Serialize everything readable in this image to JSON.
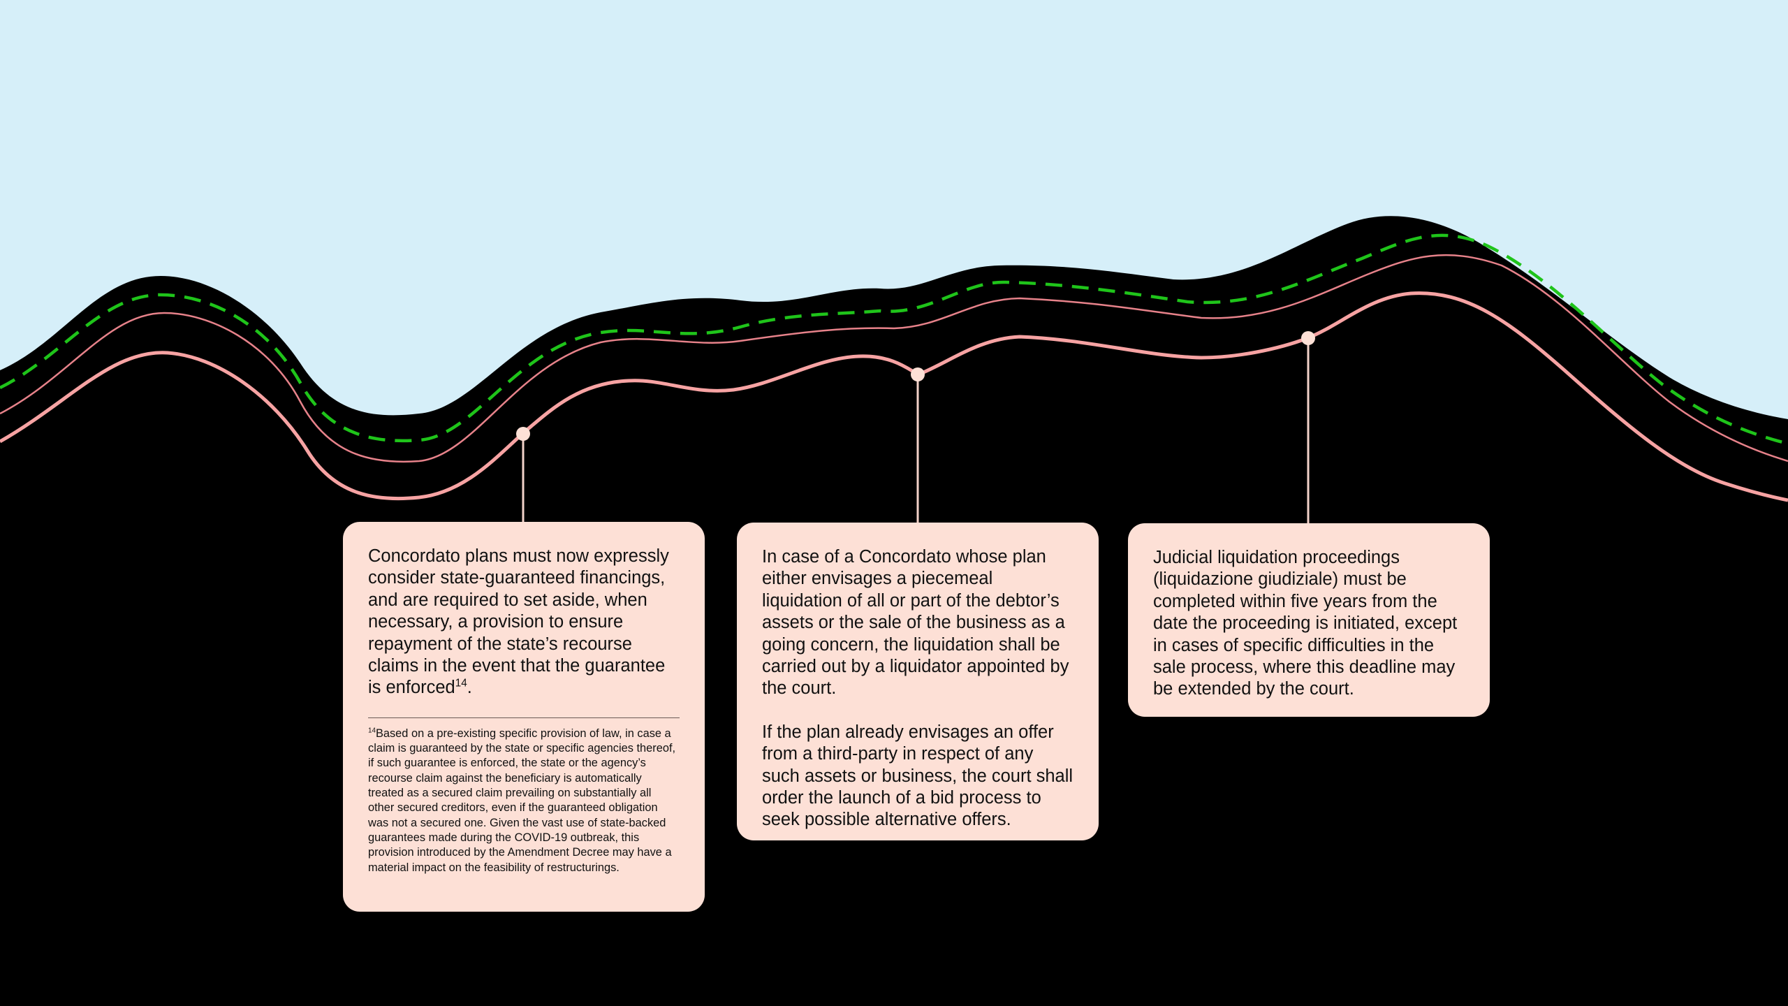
{
  "colors": {
    "sky": "#d6eff9",
    "ground": "#000000",
    "dashed_line": "#1fc41a",
    "thin_line": "#e7828a",
    "main_line": "#f7a3a3",
    "connector": "#f3d2c9",
    "card_background": "#fde0d6"
  },
  "cards": [
    {
      "paragraphs": [
        {
          "text": "Concordato plans must now expressly consider state-guaranteed financings, and are required to set aside, when necessary, a provision to ensure repayment of the state’s recourse claims in the event that the guarantee is enforced",
          "sup": "14",
          "end": "."
        }
      ],
      "footnote": {
        "marker": "14",
        "text": "Based on a pre-existing specific provision of law, in case a claim is guaranteed by the state or specific agencies thereof, if such guarantee is enforced, the state or the agency’s recourse claim against the beneficiary is automatically treated as a secured claim prevailing on substantially all other secured creditors, even if the guaranteed obligation was not a secured one. Given the vast use of state-backed guarantees made during the COVID-19 outbreak, this provision introduced by the Amendment Decree may have a material impact on the feasibility of restructurings."
      }
    },
    {
      "paragraphs": [
        {
          "text": "In case of a Concordato whose plan either envisages a piecemeal liquidation of all or part of the debtor’s assets or the sale of the business as a going concern, the liquidation shall be carried out by a liquidator appointed by the court."
        },
        {
          "text": "If the plan already envisages an offer from a third-party in respect of any such assets or business, the court shall order the launch of a bid process to seek possible alternative offers."
        }
      ]
    },
    {
      "paragraphs": [
        {
          "text": "Judicial liquidation proceedings (liquidazione giudiziale) must be completed within five years from the date the proceeding is initiated, except in cases of specific difficulties in the sale process, where this deadline may be extended by the court."
        }
      ]
    }
  ]
}
